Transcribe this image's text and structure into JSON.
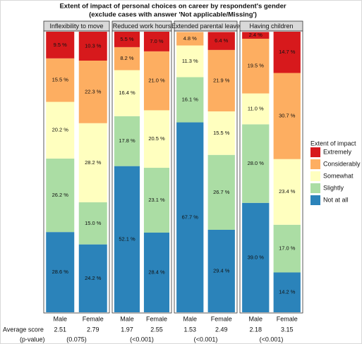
{
  "title": "Extent of impact of personal choices on career by respondent's gender",
  "subtitle": "(exclude cases with answer 'Not applicable/Missing')",
  "legend_title": "Extent of impact",
  "row_labels": {
    "average": "Average score",
    "p_value": "(p-value)"
  },
  "chart_data": [
    {
      "type": "stacked_bar",
      "title": "Inflexibility to move",
      "categories": [
        "Male",
        "Female"
      ],
      "ylim": [
        0,
        100
      ],
      "series": [
        {
          "name": "Extremely",
          "color": "#d7191c",
          "values": [
            9.5,
            10.3
          ],
          "value_labels": [
            "9.5 %",
            "10.3 %"
          ]
        },
        {
          "name": "Considerably",
          "color": "#fdae61",
          "values": [
            15.5,
            22.3
          ],
          "value_labels": [
            "15.5 %",
            "22.3 %"
          ]
        },
        {
          "name": "Somewhat",
          "color": "#ffffbf",
          "values": [
            20.2,
            28.2
          ],
          "value_labels": [
            "20.2 %",
            "28.2 %"
          ]
        },
        {
          "name": "Slightly",
          "color": "#abdda4",
          "values": [
            26.2,
            15.0
          ],
          "value_labels": [
            "26.2 %",
            "15.0 %"
          ]
        },
        {
          "name": "Not at all",
          "color": "#2b83ba",
          "values": [
            28.6,
            24.2
          ],
          "value_labels": [
            "28.6 %",
            "24.2 %"
          ]
        }
      ],
      "average_scores": [
        2.51,
        2.79
      ],
      "p_value": "(0.075)"
    },
    {
      "type": "stacked_bar",
      "title": "Reduced work hours",
      "categories": [
        "Male",
        "Female"
      ],
      "ylim": [
        0,
        100
      ],
      "series": [
        {
          "name": "Extremely",
          "color": "#d7191c",
          "values": [
            5.5,
            7.0
          ],
          "value_labels": [
            "5.5 %",
            "7.0 %"
          ]
        },
        {
          "name": "Considerably",
          "color": "#fdae61",
          "values": [
            8.2,
            21.0
          ],
          "value_labels": [
            "8.2 %",
            "21.0 %"
          ]
        },
        {
          "name": "Somewhat",
          "color": "#ffffbf",
          "values": [
            16.4,
            20.5
          ],
          "value_labels": [
            "16.4 %",
            "20.5 %"
          ]
        },
        {
          "name": "Slightly",
          "color": "#abdda4",
          "values": [
            17.8,
            23.1
          ],
          "value_labels": [
            "17.8 %",
            "23.1 %"
          ]
        },
        {
          "name": "Not at all",
          "color": "#2b83ba",
          "values": [
            52.1,
            28.4
          ],
          "value_labels": [
            "52.1 %",
            "28.4 %"
          ]
        }
      ],
      "average_scores": [
        1.97,
        2.55
      ],
      "p_value": "(<0.001)"
    },
    {
      "type": "stacked_bar",
      "title": "Extended parental leave",
      "categories": [
        "Male",
        "Female"
      ],
      "ylim": [
        0,
        100
      ],
      "series": [
        {
          "name": "Extremely",
          "color": "#d7191c",
          "values": [
            0,
            6.4
          ],
          "value_labels": [
            null,
            "6.4 %"
          ]
        },
        {
          "name": "Considerably",
          "color": "#fdae61",
          "values": [
            4.8,
            21.9
          ],
          "value_labels": [
            "4.8 %",
            "21.9 %"
          ]
        },
        {
          "name": "Somewhat",
          "color": "#ffffbf",
          "values": [
            11.3,
            15.5
          ],
          "value_labels": [
            "11.3 %",
            "15.5 %"
          ]
        },
        {
          "name": "Slightly",
          "color": "#abdda4",
          "values": [
            16.1,
            26.7
          ],
          "value_labels": [
            "16.1 %",
            "26.7 %"
          ]
        },
        {
          "name": "Not at all",
          "color": "#2b83ba",
          "values": [
            67.7,
            29.4
          ],
          "value_labels": [
            "67.7 %",
            "29.4 %"
          ]
        }
      ],
      "average_scores": [
        1.53,
        2.49
      ],
      "p_value": "(<0.001)"
    },
    {
      "type": "stacked_bar",
      "title": "Having children",
      "categories": [
        "Male",
        "Female"
      ],
      "ylim": [
        0,
        100
      ],
      "series": [
        {
          "name": "Extremely",
          "color": "#d7191c",
          "values": [
            2.4,
            14.7
          ],
          "value_labels": [
            "2.4 %",
            "14.7 %"
          ]
        },
        {
          "name": "Considerably",
          "color": "#fdae61",
          "values": [
            19.5,
            30.7
          ],
          "value_labels": [
            "19.5 %",
            "30.7 %"
          ]
        },
        {
          "name": "Somewhat",
          "color": "#ffffbf",
          "values": [
            11.0,
            23.4
          ],
          "value_labels": [
            "11.0 %",
            "23.4 %"
          ]
        },
        {
          "name": "Slightly",
          "color": "#abdda4",
          "values": [
            28.0,
            17.0
          ],
          "value_labels": [
            "28.0 %",
            "17.0 %"
          ]
        },
        {
          "name": "Not at all",
          "color": "#2b83ba",
          "values": [
            39.0,
            14.2
          ],
          "value_labels": [
            "39.0 %",
            "14.2 %"
          ]
        }
      ],
      "average_scores": [
        2.18,
        3.15
      ],
      "p_value": "(<0.001)"
    }
  ]
}
